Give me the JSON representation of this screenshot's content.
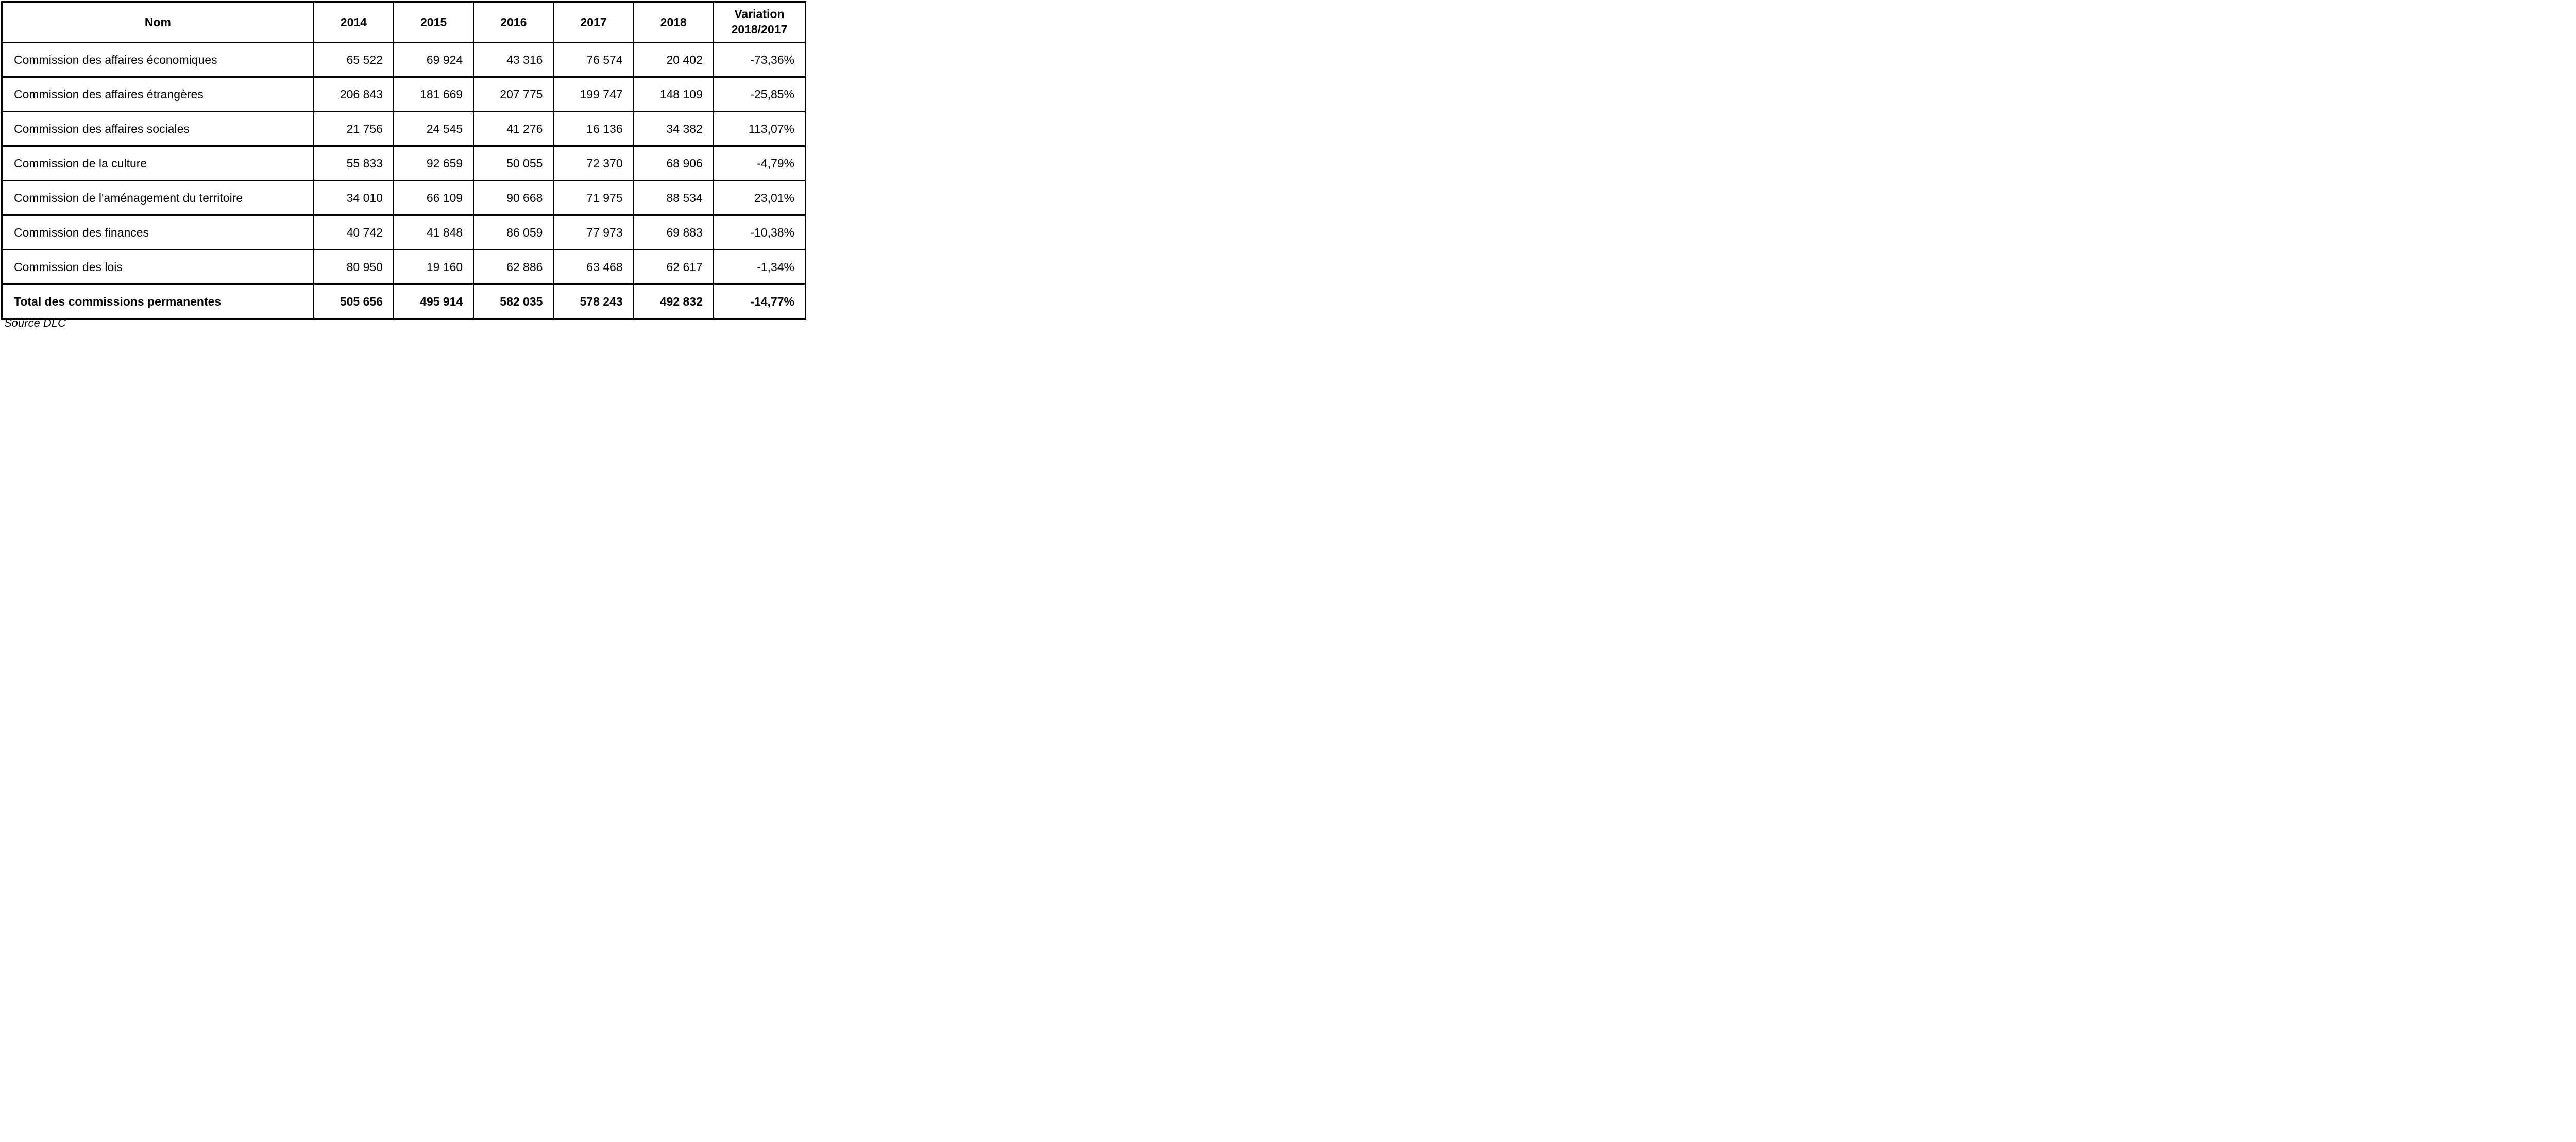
{
  "table": {
    "header": {
      "name_label": "Nom",
      "years": [
        "2014",
        "2015",
        "2016",
        "2017",
        "2018"
      ],
      "variation": {
        "line1": "Variation",
        "line2": "2018/2017"
      }
    },
    "rows": [
      {
        "name": "Commission des affaires économiques",
        "values": [
          "65 522",
          "69 924",
          "43 316",
          "76 574",
          "20 402"
        ],
        "variation": "-73,36%"
      },
      {
        "name": "Commission des affaires étrangères",
        "values": [
          "206 843",
          "181 669",
          "207 775",
          "199 747",
          "148 109"
        ],
        "variation": "-25,85%"
      },
      {
        "name": "Commission des affaires sociales",
        "values": [
          "21 756",
          "24 545",
          "41 276",
          "16 136",
          "34 382"
        ],
        "variation": "113,07%"
      },
      {
        "name": "Commission de la culture",
        "values": [
          "55 833",
          "92 659",
          "50 055",
          "72 370",
          "68 906"
        ],
        "variation": "-4,79%"
      },
      {
        "name": "Commission de l'aménagement du territoire",
        "values": [
          "34 010",
          "66 109",
          "90 668",
          "71 975",
          "88 534"
        ],
        "variation": "23,01%"
      },
      {
        "name": "Commission des finances",
        "values": [
          "40 742",
          "41 848",
          "86 059",
          "77 973",
          "69 883"
        ],
        "variation": "-10,38%"
      },
      {
        "name": "Commission des lois",
        "values": [
          "80 950",
          "19 160",
          "62 886",
          "63 468",
          "62 617"
        ],
        "variation": "-1,34%"
      }
    ],
    "total": {
      "name": "Total des commissions permanentes",
      "values": [
        "505 656",
        "495 914",
        "582 035",
        "578 243",
        "492 832"
      ],
      "variation": "-14,77%"
    }
  },
  "source": "Source DLC",
  "colors": {
    "border": "#000000",
    "text": "#000000",
    "background": "#ffffff"
  },
  "chart_data": {
    "type": "table",
    "columns": [
      "Nom",
      "2014",
      "2015",
      "2016",
      "2017",
      "2018",
      "Variation 2018/2017"
    ],
    "rows": [
      {
        "name": "Commission des affaires économiques",
        "values": [
          65522,
          69924,
          43316,
          76574,
          20402
        ],
        "variation_pct": -73.36
      },
      {
        "name": "Commission des affaires étrangères",
        "values": [
          206843,
          181669,
          207775,
          199747,
          148109
        ],
        "variation_pct": -25.85
      },
      {
        "name": "Commission des affaires sociales",
        "values": [
          21756,
          24545,
          41276,
          16136,
          34382
        ],
        "variation_pct": 113.07
      },
      {
        "name": "Commission de la culture",
        "values": [
          55833,
          92659,
          50055,
          72370,
          68906
        ],
        "variation_pct": -4.79
      },
      {
        "name": "Commission de l'aménagement du territoire",
        "values": [
          34010,
          66109,
          90668,
          71975,
          88534
        ],
        "variation_pct": 23.01
      },
      {
        "name": "Commission des finances",
        "values": [
          40742,
          41848,
          86059,
          77973,
          69883
        ],
        "variation_pct": -10.38
      },
      {
        "name": "Commission des lois",
        "values": [
          80950,
          19160,
          62886,
          63468,
          62617
        ],
        "variation_pct": -1.34
      }
    ],
    "total_row": {
      "name": "Total des commissions permanentes",
      "values": [
        505656,
        495914,
        582035,
        578243,
        492832
      ],
      "variation_pct": -14.77
    },
    "source": "Source DLC"
  }
}
